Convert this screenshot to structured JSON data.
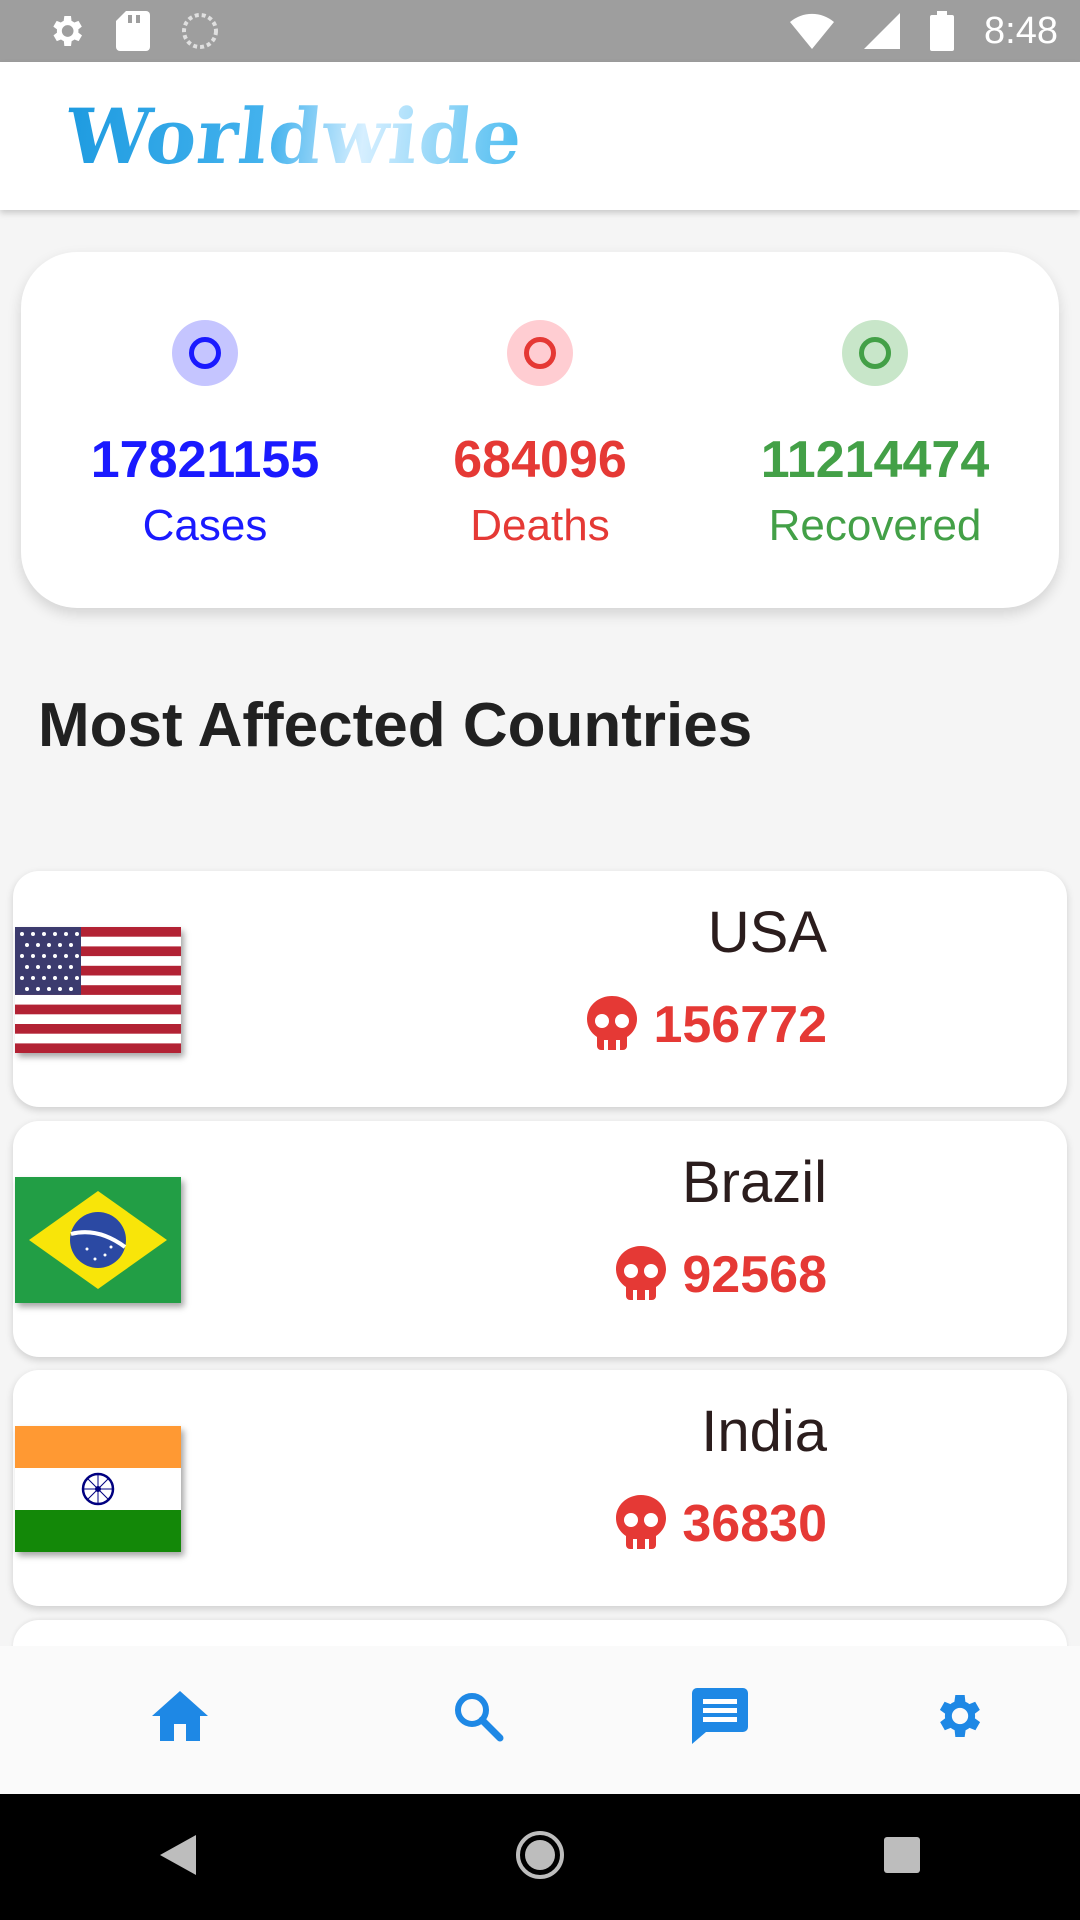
{
  "status_bar": {
    "time": "8:48"
  },
  "app_bar": {
    "title": "Worldwide"
  },
  "summary": {
    "cases": {
      "value": "17821155",
      "label": "Cases",
      "color": "#1a1aff",
      "tint": "#c5c5ff"
    },
    "deaths": {
      "value": "684096",
      "label": "Deaths",
      "color": "#e53935",
      "tint": "#ffcdd2"
    },
    "recovered": {
      "value": "11214474",
      "label": "Recovered",
      "color": "#43a047",
      "tint": "#c8e6c9"
    }
  },
  "section_heading": "Most Affected Countries",
  "countries": [
    {
      "name": "USA",
      "deaths": "156772",
      "flag": "usa-flag"
    },
    {
      "name": "Brazil",
      "deaths": "92568",
      "flag": "brazil-flag"
    },
    {
      "name": "India",
      "deaths": "36830",
      "flag": "india-flag"
    }
  ],
  "bottom_nav": {
    "items": [
      {
        "icon": "home-icon",
        "active": true
      },
      {
        "icon": "search-icon"
      },
      {
        "icon": "chat-icon"
      },
      {
        "icon": "gear-icon"
      }
    ],
    "accent": "#1e88e5"
  },
  "system_nav": {
    "icons": [
      "back-icon",
      "home-circle-icon",
      "recents-icon"
    ]
  }
}
